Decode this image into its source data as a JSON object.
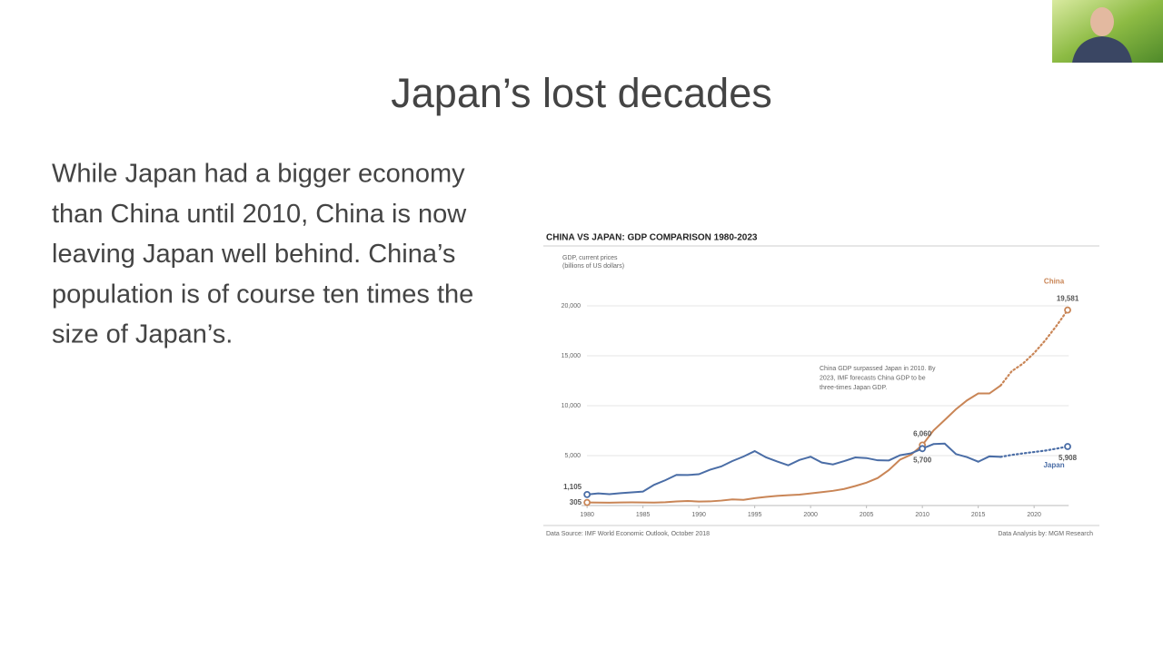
{
  "slide": {
    "title": "Japan’s lost decades",
    "body_lines": [
      "While Japan had a bigger economy",
      "than China until 2010, China is now",
      "leaving Japan well behind.  China’s",
      "population is of course ten times the",
      "size of Japan’s."
    ]
  },
  "chart_data": {
    "type": "line",
    "title": "CHINA VS JAPAN: GDP COMPARISON 1980-2023",
    "y_label_lines": [
      "GDP, current prices",
      "(billions of US dollars)"
    ],
    "annotation_lines": [
      "China GDP surpassed Japan in 2010. By",
      "2023, IMF forecasts China GDP to be",
      "three-times Japan GDP."
    ],
    "source": "Data Source: IMF World Economic Outlook, October 2018",
    "credit": "Data Analysis by: MGM Research",
    "x": [
      1980,
      1981,
      1982,
      1983,
      1984,
      1985,
      1986,
      1987,
      1988,
      1989,
      1990,
      1991,
      1992,
      1993,
      1994,
      1995,
      1996,
      1997,
      1998,
      1999,
      2000,
      2001,
      2002,
      2003,
      2004,
      2005,
      2006,
      2007,
      2008,
      2009,
      2010,
      2011,
      2012,
      2013,
      2014,
      2015,
      2016,
      2017,
      2018,
      2019,
      2020,
      2021,
      2022,
      2023
    ],
    "forecast_from": 2017,
    "series": [
      {
        "name": "China",
        "color": "#c98556",
        "values": [
          305,
          290,
          284,
          302,
          313,
          309,
          301,
          327,
          410,
          458,
          397,
          415,
          494,
          617,
          564,
          734,
          864,
          961,
          1029,
          1094,
          1211,
          1339,
          1471,
          1660,
          1955,
          2286,
          2752,
          3550,
          4594,
          5101,
          6060,
          7522,
          8570,
          9635,
          10535,
          11226,
          11222,
          12015,
          13457,
          14217,
          15270,
          16550,
          18000,
          19581
        ],
        "value_labels": [
          "305",
          null,
          null,
          null,
          null,
          null,
          null,
          null,
          null,
          null,
          null,
          null,
          null,
          null,
          null,
          null,
          null,
          null,
          null,
          null,
          null,
          null,
          null,
          null,
          null,
          null,
          null,
          null,
          null,
          null,
          "6,060",
          null,
          null,
          null,
          null,
          null,
          null,
          null,
          null,
          null,
          null,
          null,
          null,
          "19,581"
        ]
      },
      {
        "name": "Japan",
        "color": "#4a6da6",
        "values": [
          1105,
          1218,
          1134,
          1243,
          1318,
          1398,
          2078,
          2532,
          3072,
          3054,
          3133,
          3584,
          3909,
          4454,
          4907,
          5449,
          4833,
          4414,
          4032,
          4562,
          4888,
          4304,
          4115,
          4445,
          4815,
          4755,
          4530,
          4515,
          5038,
          5231,
          5700,
          6157,
          6203,
          5156,
          4850,
          4389,
          4926,
          4872,
          5070,
          5220,
          5360,
          5500,
          5700,
          5908
        ],
        "value_labels": [
          "1,105",
          null,
          null,
          null,
          null,
          null,
          null,
          null,
          null,
          null,
          null,
          null,
          null,
          null,
          null,
          null,
          null,
          null,
          null,
          null,
          null,
          null,
          null,
          null,
          null,
          null,
          null,
          null,
          null,
          null,
          "5,700",
          null,
          null,
          null,
          null,
          null,
          null,
          null,
          null,
          null,
          null,
          null,
          null,
          "5,908"
        ]
      }
    ],
    "xlim": [
      1979.5,
      2023.5
    ],
    "xticks": [
      1980,
      1985,
      1990,
      1995,
      2000,
      2005,
      2010,
      2015,
      2020
    ],
    "ylim": [
      0,
      22000
    ],
    "yticks": [
      {
        "value": 5000,
        "label": "5,000"
      },
      {
        "value": 10000,
        "label": "10,000"
      },
      {
        "value": 15000,
        "label": "15,000"
      },
      {
        "value": 20000,
        "label": "20,000"
      }
    ],
    "grid": true
  }
}
